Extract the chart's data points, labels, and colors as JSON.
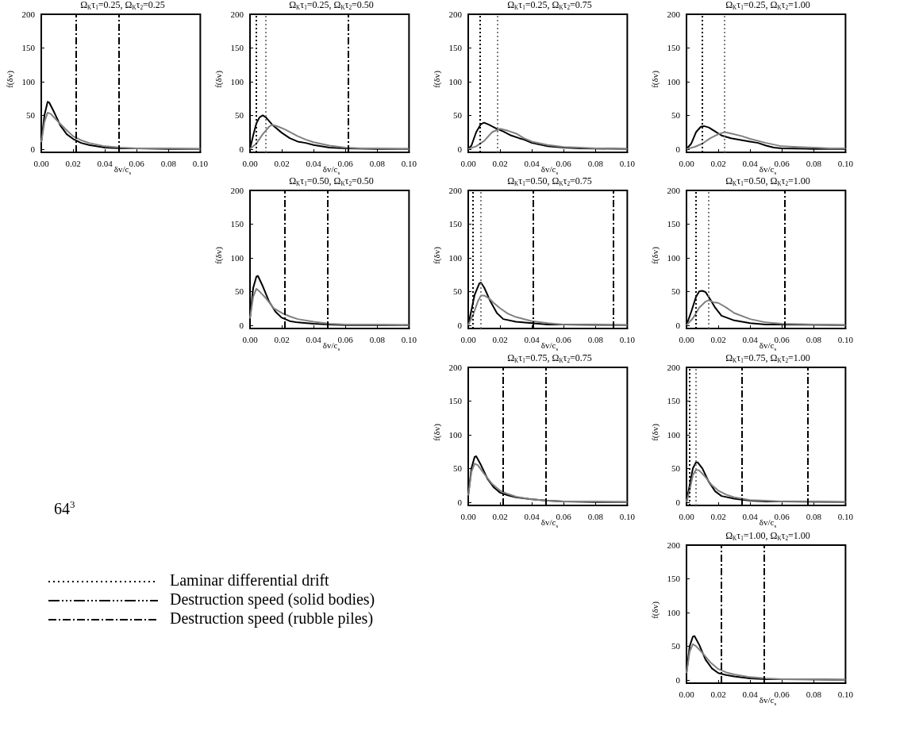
{
  "chart_data": [
    {
      "type": "line",
      "title": "Ω$_{K}$τ$_{1}$=0.25, Ω$_{K}$τ$_{2}$=0.25",
      "xlabel": "δv/c$_{s}$",
      "ylabel": "f(δv)",
      "xlim": [
        0,
        0.1
      ],
      "ylim": [
        -5,
        200
      ],
      "xticks": [
        {
          "value": 0,
          "label": "0.00"
        },
        {
          "value": 0.02,
          "label": "0.02"
        },
        {
          "value": 0.04,
          "label": "0.04"
        },
        {
          "value": 0.06,
          "label": "0.06"
        },
        {
          "value": 0.08,
          "label": "0.08"
        },
        {
          "value": 0.1,
          "label": "0.10"
        }
      ],
      "yticks": [
        0,
        50,
        100,
        150,
        200
      ],
      "series": [
        {
          "color": "#000000",
          "x": [
            0,
            0.002,
            0.004,
            0.005,
            0.008,
            0.012,
            0.016,
            0.02,
            0.025,
            0.03,
            0.04,
            0.05,
            0.06,
            0.08,
            0.1
          ],
          "values": [
            10,
            50,
            70,
            69,
            55,
            35,
            22,
            15,
            9,
            6,
            2,
            1,
            1,
            0,
            0
          ]
        },
        {
          "color": "#808080",
          "x": [
            0,
            0.002,
            0.004,
            0.006,
            0.01,
            0.015,
            0.02,
            0.025,
            0.03,
            0.04,
            0.05,
            0.06,
            0.08,
            0.1
          ],
          "values": [
            10,
            40,
            54,
            52,
            42,
            30,
            19,
            13,
            9,
            4,
            2,
            1,
            1,
            0
          ]
        }
      ],
      "ref_lines": [
        {
          "axis": "x",
          "value": 0.022,
          "color": "#000000",
          "line_style": "dashed"
        },
        {
          "axis": "x",
          "value": 0.049,
          "color": "#000000",
          "line_style": "dashed"
        }
      ]
    },
    {
      "type": "line",
      "title": "Ω$_{K}$τ$_{1}$=0.25, Ω$_{K}$τ$_{2}$=0.50",
      "xlabel": "δv/c$_{s}$",
      "ylabel": "f(δv)",
      "xlim": [
        0,
        0.1
      ],
      "ylim": [
        -5,
        200
      ],
      "xticks": [
        {
          "value": 0,
          "label": "0.00"
        },
        {
          "value": 0.02,
          "label": "0.02"
        },
        {
          "value": 0.04,
          "label": "0.04"
        },
        {
          "value": 0.06,
          "label": "0.06"
        },
        {
          "value": 0.08,
          "label": "0.08"
        },
        {
          "value": 0.1,
          "label": "0.10"
        }
      ],
      "yticks": [
        0,
        50,
        100,
        150,
        200
      ],
      "series": [
        {
          "color": "#000000",
          "x": [
            0,
            0.002,
            0.004,
            0.006,
            0.008,
            0.01,
            0.014,
            0.02,
            0.025,
            0.03,
            0.035,
            0.04,
            0.05,
            0.06,
            0.08,
            0.1
          ],
          "values": [
            0,
            20,
            38,
            47,
            50,
            47,
            36,
            24,
            16,
            11,
            9,
            6,
            2,
            1,
            0,
            0
          ]
        },
        {
          "color": "#808080",
          "x": [
            0,
            0.004,
            0.008,
            0.012,
            0.014,
            0.018,
            0.022,
            0.026,
            0.03,
            0.035,
            0.04,
            0.05,
            0.06,
            0.07,
            0.08,
            0.1
          ],
          "values": [
            0,
            8,
            22,
            33,
            36,
            33,
            29,
            24,
            19,
            14,
            10,
            5,
            2,
            1,
            1,
            0
          ]
        }
      ],
      "ref_lines": [
        {
          "axis": "x",
          "value": 0.004,
          "color": "#000000",
          "line_style": "dotted"
        },
        {
          "axis": "x",
          "value": 0.01,
          "color": "#808080",
          "line_style": "dotted"
        },
        {
          "axis": "x",
          "value": 0.062,
          "color": "#000000",
          "line_style": "dashed"
        }
      ]
    },
    {
      "type": "line",
      "title": "Ω$_{K}$τ$_{1}$=0.25, Ω$_{K}$τ$_{2}$=0.75",
      "xlabel": "δv/c$_{s}$",
      "ylabel": "f(δv)",
      "xlim": [
        0,
        0.1
      ],
      "ylim": [
        -5,
        200
      ],
      "xticks": [
        {
          "value": 0,
          "label": "0.00"
        },
        {
          "value": 0.02,
          "label": "0.02"
        },
        {
          "value": 0.04,
          "label": "0.04"
        },
        {
          "value": 0.06,
          "label": "0.06"
        },
        {
          "value": 0.08,
          "label": "0.08"
        },
        {
          "value": 0.1,
          "label": "0.10"
        }
      ],
      "yticks": [
        0,
        50,
        100,
        150,
        200
      ],
      "series": [
        {
          "color": "#000000",
          "x": [
            0,
            0.002,
            0.005,
            0.008,
            0.01,
            0.013,
            0.018,
            0.022,
            0.027,
            0.032,
            0.035,
            0.04,
            0.05,
            0.06,
            0.07,
            0.1
          ],
          "values": [
            0,
            5,
            25,
            37,
            39,
            36,
            30,
            26,
            20,
            16,
            14,
            9,
            4,
            2,
            1,
            0
          ]
        },
        {
          "color": "#808080",
          "x": [
            0,
            0.005,
            0.01,
            0.015,
            0.02,
            0.025,
            0.03,
            0.035,
            0.04,
            0.05,
            0.06,
            0.07,
            0.08,
            0.1
          ],
          "values": [
            0,
            4,
            12,
            25,
            30,
            27,
            23,
            16,
            11,
            6,
            3,
            2,
            1,
            0
          ]
        }
      ],
      "ref_lines": [
        {
          "axis": "x",
          "value": 0.0075,
          "color": "#000000",
          "line_style": "dotted"
        },
        {
          "axis": "x",
          "value": 0.0185,
          "color": "#808080",
          "line_style": "dotted"
        }
      ]
    },
    {
      "type": "line",
      "title": "Ω$_{K}$τ$_{1}$=0.25, Ω$_{K}$τ$_{2}$=1.00",
      "xlabel": "δv/c$_{s}$",
      "ylabel": "f(δv)",
      "xlim": [
        0,
        0.1
      ],
      "ylim": [
        -5,
        200
      ],
      "xticks": [
        {
          "value": 0,
          "label": "0.00"
        },
        {
          "value": 0.02,
          "label": "0.02"
        },
        {
          "value": 0.04,
          "label": "0.04"
        },
        {
          "value": 0.06,
          "label": "0.06"
        },
        {
          "value": 0.08,
          "label": "0.08"
        },
        {
          "value": 0.1,
          "label": "0.10"
        }
      ],
      "yticks": [
        0,
        50,
        100,
        150,
        200
      ],
      "series": [
        {
          "color": "#000000",
          "x": [
            0,
            0.003,
            0.006,
            0.009,
            0.011,
            0.014,
            0.018,
            0.022,
            0.028,
            0.035,
            0.04,
            0.045,
            0.05,
            0.055,
            0.06,
            0.08,
            0.1
          ],
          "values": [
            0,
            8,
            25,
            33,
            34,
            32,
            26,
            20,
            16,
            13,
            11,
            9,
            5,
            2,
            1,
            0,
            0
          ]
        },
        {
          "color": "#808080",
          "x": [
            0,
            0.005,
            0.01,
            0.015,
            0.02,
            0.024,
            0.028,
            0.035,
            0.04,
            0.05,
            0.06,
            0.07,
            0.08,
            0.09,
            0.1
          ],
          "values": [
            0,
            3,
            8,
            16,
            22,
            25,
            23,
            19,
            15,
            9,
            4,
            3,
            2,
            1,
            1
          ]
        }
      ],
      "ref_lines": [
        {
          "axis": "x",
          "value": 0.01,
          "color": "#000000",
          "line_style": "dotted"
        },
        {
          "axis": "x",
          "value": 0.024,
          "color": "#808080",
          "line_style": "dotted"
        }
      ]
    },
    {
      "type": "line",
      "title": "Ω$_{K}$τ$_{1}$=0.50, Ω$_{K}$τ$_{2}$=0.50",
      "xlabel": "δv/c$_{s}$",
      "ylabel": "f(δv)",
      "xlim": [
        0,
        0.1
      ],
      "ylim": [
        -5,
        200
      ],
      "xticks": [
        {
          "value": 0,
          "label": "0.00"
        },
        {
          "value": 0.02,
          "label": "0.02"
        },
        {
          "value": 0.04,
          "label": "0.04"
        },
        {
          "value": 0.06,
          "label": "0.06"
        },
        {
          "value": 0.08,
          "label": "0.08"
        },
        {
          "value": 0.1,
          "label": "0.10"
        }
      ],
      "yticks": [
        0,
        50,
        100,
        150,
        200
      ],
      "series": [
        {
          "color": "#000000",
          "x": [
            0,
            0.002,
            0.004,
            0.005,
            0.008,
            0.012,
            0.016,
            0.02,
            0.025,
            0.03,
            0.04,
            0.05,
            0.06,
            0.1
          ],
          "values": [
            10,
            55,
            72,
            73,
            58,
            35,
            20,
            11,
            6,
            4,
            2,
            1,
            0,
            0
          ]
        },
        {
          "color": "#808080",
          "x": [
            0,
            0.002,
            0.004,
            0.006,
            0.01,
            0.015,
            0.02,
            0.025,
            0.03,
            0.04,
            0.05,
            0.06,
            0.08,
            0.1
          ],
          "values": [
            10,
            42,
            54,
            50,
            40,
            25,
            18,
            13,
            9,
            5,
            2,
            1,
            1,
            0
          ]
        }
      ],
      "ref_lines": [
        {
          "axis": "x",
          "value": 0.022,
          "color": "#000000",
          "line_style": "dashed"
        },
        {
          "axis": "x",
          "value": 0.049,
          "color": "#000000",
          "line_style": "dashed"
        }
      ]
    },
    {
      "type": "line",
      "title": "Ω$_{K}$τ$_{1}$=0.50, Ω$_{K}$τ$_{2}$=0.75",
      "xlabel": "δv/c$_{s}$",
      "ylabel": "f(δv)",
      "xlim": [
        0,
        0.1
      ],
      "ylim": [
        -5,
        200
      ],
      "xticks": [
        {
          "value": 0,
          "label": "0.00"
        },
        {
          "value": 0.02,
          "label": "0.02"
        },
        {
          "value": 0.04,
          "label": "0.04"
        },
        {
          "value": 0.06,
          "label": "0.06"
        },
        {
          "value": 0.08,
          "label": "0.08"
        },
        {
          "value": 0.1,
          "label": "0.10"
        }
      ],
      "yticks": [
        0,
        50,
        100,
        150,
        200
      ],
      "series": [
        {
          "color": "#000000",
          "x": [
            0,
            0.002,
            0.004,
            0.007,
            0.008,
            0.01,
            0.014,
            0.018,
            0.022,
            0.03,
            0.04,
            0.05,
            0.06,
            0.1
          ],
          "values": [
            0,
            22,
            45,
            62,
            63,
            56,
            35,
            18,
            9,
            5,
            3,
            1,
            1,
            0
          ]
        },
        {
          "color": "#808080",
          "x": [
            0,
            0.003,
            0.006,
            0.008,
            0.01,
            0.013,
            0.016,
            0.02,
            0.025,
            0.03,
            0.04,
            0.05,
            0.06,
            0.08,
            0.1
          ],
          "values": [
            0,
            15,
            35,
            44,
            44,
            40,
            33,
            25,
            17,
            12,
            6,
            3,
            1,
            0,
            0
          ]
        }
      ],
      "ref_lines": [
        {
          "axis": "x",
          "value": 0.003,
          "color": "#000000",
          "line_style": "dotted"
        },
        {
          "axis": "x",
          "value": 0.008,
          "color": "#808080",
          "line_style": "dotted"
        },
        {
          "axis": "x",
          "value": 0.041,
          "color": "#000000",
          "line_style": "dashed"
        },
        {
          "axis": "x",
          "value": 0.091,
          "color": "#000000",
          "line_style": "dashed"
        }
      ]
    },
    {
      "type": "line",
      "title": "Ω$_{K}$τ$_{1}$=0.50, Ω$_{K}$τ$_{2}$=1.00",
      "xlabel": "δv/c$_{s}$",
      "ylabel": "f(δv)",
      "xlim": [
        0,
        0.1
      ],
      "ylim": [
        -5,
        200
      ],
      "xticks": [
        {
          "value": 0,
          "label": "0.00"
        },
        {
          "value": 0.02,
          "label": "0.02"
        },
        {
          "value": 0.04,
          "label": "0.04"
        },
        {
          "value": 0.06,
          "label": "0.06"
        },
        {
          "value": 0.08,
          "label": "0.08"
        },
        {
          "value": 0.1,
          "label": "0.10"
        }
      ],
      "yticks": [
        0,
        50,
        100,
        150,
        200
      ],
      "series": [
        {
          "color": "#000000",
          "x": [
            0,
            0.003,
            0.006,
            0.008,
            0.01,
            0.012,
            0.015,
            0.018,
            0.022,
            0.03,
            0.04,
            0.05,
            0.06,
            0.1
          ],
          "values": [
            0,
            20,
            42,
            50,
            51,
            49,
            38,
            26,
            14,
            7,
            3,
            1,
            1,
            0
          ]
        },
        {
          "color": "#808080",
          "x": [
            0,
            0.004,
            0.008,
            0.012,
            0.014,
            0.017,
            0.02,
            0.025,
            0.03,
            0.04,
            0.05,
            0.06,
            0.08,
            0.1
          ],
          "values": [
            0,
            10,
            26,
            35,
            37,
            34,
            33,
            26,
            18,
            9,
            4,
            2,
            1,
            0
          ]
        }
      ],
      "ref_lines": [
        {
          "axis": "x",
          "value": 0.006,
          "color": "#000000",
          "line_style": "dotted"
        },
        {
          "axis": "x",
          "value": 0.014,
          "color": "#808080",
          "line_style": "dotted"
        },
        {
          "axis": "x",
          "value": 0.062,
          "color": "#000000",
          "line_style": "dashed"
        }
      ]
    },
    {
      "type": "line",
      "title": "Ω$_{K}$τ$_{1}$=0.75, Ω$_{K}$τ$_{2}$=0.75",
      "xlabel": "δv/c$_{s}$",
      "ylabel": "f(δv)",
      "xlim": [
        0,
        0.1
      ],
      "ylim": [
        -5,
        200
      ],
      "xticks": [
        {
          "value": 0,
          "label": "0.00"
        },
        {
          "value": 0.02,
          "label": "0.02"
        },
        {
          "value": 0.04,
          "label": "0.04"
        },
        {
          "value": 0.06,
          "label": "0.06"
        },
        {
          "value": 0.08,
          "label": "0.08"
        },
        {
          "value": 0.1,
          "label": "0.10"
        }
      ],
      "yticks": [
        0,
        50,
        100,
        150,
        200
      ],
      "series": [
        {
          "color": "#000000",
          "x": [
            0,
            0.002,
            0.004,
            0.005,
            0.008,
            0.012,
            0.016,
            0.02,
            0.025,
            0.03,
            0.04,
            0.05,
            0.06,
            0.08,
            0.1
          ],
          "values": [
            10,
            50,
            67,
            68,
            55,
            35,
            22,
            14,
            10,
            7,
            4,
            2,
            1,
            0,
            0
          ]
        },
        {
          "color": "#808080",
          "x": [
            0,
            0.002,
            0.004,
            0.006,
            0.01,
            0.015,
            0.02,
            0.025,
            0.03,
            0.04,
            0.05,
            0.06,
            0.08,
            0.1
          ],
          "values": [
            10,
            45,
            57,
            55,
            42,
            27,
            17,
            12,
            8,
            4,
            2,
            1,
            1,
            0
          ]
        }
      ],
      "ref_lines": [
        {
          "axis": "x",
          "value": 0.022,
          "color": "#000000",
          "line_style": "dashed"
        },
        {
          "axis": "x",
          "value": 0.049,
          "color": "#000000",
          "line_style": "dashed"
        }
      ]
    },
    {
      "type": "line",
      "title": "Ω$_{K}$τ$_{1}$=0.75, Ω$_{K}$τ$_{2}$=1.00",
      "xlabel": "δv/c$_{s}$",
      "ylabel": "f(δv)",
      "xlim": [
        0,
        0.1
      ],
      "ylim": [
        -5,
        200
      ],
      "xticks": [
        {
          "value": 0,
          "label": "0.00"
        },
        {
          "value": 0.02,
          "label": "0.02"
        },
        {
          "value": 0.04,
          "label": "0.04"
        },
        {
          "value": 0.06,
          "label": "0.06"
        },
        {
          "value": 0.08,
          "label": "0.08"
        },
        {
          "value": 0.1,
          "label": "0.10"
        }
      ],
      "yticks": [
        0,
        50,
        100,
        150,
        200
      ],
      "series": [
        {
          "color": "#000000",
          "x": [
            0,
            0.002,
            0.004,
            0.006,
            0.007,
            0.01,
            0.014,
            0.018,
            0.022,
            0.03,
            0.04,
            0.05,
            0.06,
            0.1
          ],
          "values": [
            0,
            25,
            50,
            59,
            59,
            50,
            30,
            16,
            9,
            5,
            2,
            1,
            1,
            0
          ]
        },
        {
          "color": "#808080",
          "x": [
            0,
            0.002,
            0.004,
            0.006,
            0.008,
            0.012,
            0.016,
            0.02,
            0.025,
            0.03,
            0.04,
            0.05,
            0.06,
            0.1
          ],
          "values": [
            0,
            18,
            40,
            48,
            47,
            37,
            25,
            17,
            11,
            7,
            3,
            2,
            1,
            0
          ]
        }
      ],
      "ref_lines": [
        {
          "axis": "x",
          "value": 0.002,
          "color": "#000000",
          "line_style": "dotted"
        },
        {
          "axis": "x",
          "value": 0.006,
          "color": "#808080",
          "line_style": "dotted"
        },
        {
          "axis": "x",
          "value": 0.035,
          "color": "#000000",
          "line_style": "dashed"
        },
        {
          "axis": "x",
          "value": 0.076,
          "color": "#000000",
          "line_style": "dashed"
        }
      ]
    },
    {
      "type": "line",
      "title": "Ω$_{K}$τ$_{1}$=1.00, Ω$_{K}$τ$_{2}$=1.00",
      "xlabel": "δv/c$_{s}$",
      "ylabel": "f(δv)",
      "xlim": [
        0,
        0.1
      ],
      "ylim": [
        -5,
        200
      ],
      "xticks": [
        {
          "value": 0,
          "label": "0.00"
        },
        {
          "value": 0.02,
          "label": "0.02"
        },
        {
          "value": 0.04,
          "label": "0.04"
        },
        {
          "value": 0.06,
          "label": "0.06"
        },
        {
          "value": 0.08,
          "label": "0.08"
        },
        {
          "value": 0.1,
          "label": "0.10"
        }
      ],
      "yticks": [
        0,
        50,
        100,
        150,
        200
      ],
      "series": [
        {
          "color": "#000000",
          "x": [
            0,
            0.002,
            0.004,
            0.005,
            0.008,
            0.012,
            0.016,
            0.02,
            0.025,
            0.03,
            0.04,
            0.05,
            0.06,
            0.1
          ],
          "values": [
            10,
            50,
            64,
            65,
            52,
            30,
            17,
            10,
            7,
            5,
            2,
            1,
            1,
            0
          ]
        },
        {
          "color": "#808080",
          "x": [
            0,
            0.002,
            0.004,
            0.006,
            0.01,
            0.015,
            0.02,
            0.025,
            0.03,
            0.04,
            0.05,
            0.06,
            0.08,
            0.1
          ],
          "values": [
            10,
            42,
            53,
            50,
            40,
            26,
            16,
            11,
            8,
            4,
            2,
            1,
            1,
            0
          ]
        }
      ],
      "ref_lines": [
        {
          "axis": "x",
          "value": 0.022,
          "color": "#000000",
          "line_style": "dashed"
        },
        {
          "axis": "x",
          "value": 0.049,
          "color": "#000000",
          "line_style": "dashed"
        }
      ]
    },
    {
      "type": "other",
      "annotations": [
        "64$^{3}$",
        "Laminar differential drift",
        "Destruction speed (solid bodies)",
        "Destruction speed (rubble piles)"
      ]
    }
  ]
}
